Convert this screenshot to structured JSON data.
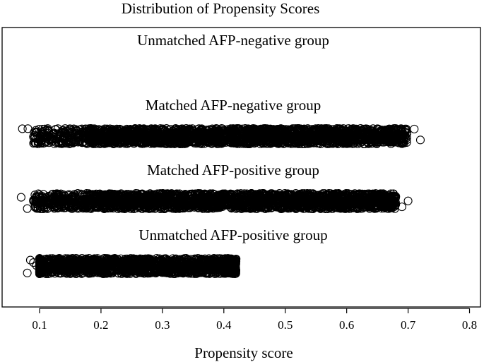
{
  "chart_data": {
    "type": "scatter",
    "title": "Distribution of Propensity Scores",
    "xlabel": "Propensity score",
    "ylabel": "",
    "xlim": [
      0.05,
      0.8
    ],
    "xticks": [
      0.1,
      0.2,
      0.3,
      0.4,
      0.5,
      0.6,
      0.7,
      0.8
    ],
    "xtick_labels": [
      "0.1",
      "0.2",
      "0.3",
      "0.4",
      "0.5",
      "0.6",
      "0.7",
      "0.8"
    ],
    "grid": false,
    "legend": "none",
    "marker": "open-circle",
    "marker_color": "#000000",
    "groups": [
      {
        "label": "Unmatched AFP-negative group",
        "range": null,
        "n_points": 0,
        "points": []
      },
      {
        "label": "Matched AFP-negative group",
        "range": [
          0.07,
          0.72
        ],
        "n_points": 2600,
        "dense_range": [
          0.18,
          0.64
        ],
        "points": [
          0.072,
          0.081,
          0.09,
          0.12,
          0.13,
          0.15,
          0.66,
          0.67,
          0.68,
          0.69,
          0.71,
          0.72
        ]
      },
      {
        "label": "Matched AFP-positive group",
        "range": [
          0.07,
          0.7
        ],
        "n_points": 2600,
        "dense_range": [
          0.17,
          0.63
        ],
        "points": [
          0.07,
          0.08,
          0.09,
          0.1,
          0.12,
          0.14,
          0.66,
          0.67,
          0.68,
          0.69,
          0.7
        ]
      },
      {
        "label": "Unmatched AFP-positive group",
        "range": [
          0.08,
          0.42
        ],
        "n_points": 1800,
        "dense_range": [
          0.1,
          0.42
        ],
        "points": [
          0.08,
          0.085,
          0.09,
          0.095,
          0.42
        ]
      }
    ]
  }
}
